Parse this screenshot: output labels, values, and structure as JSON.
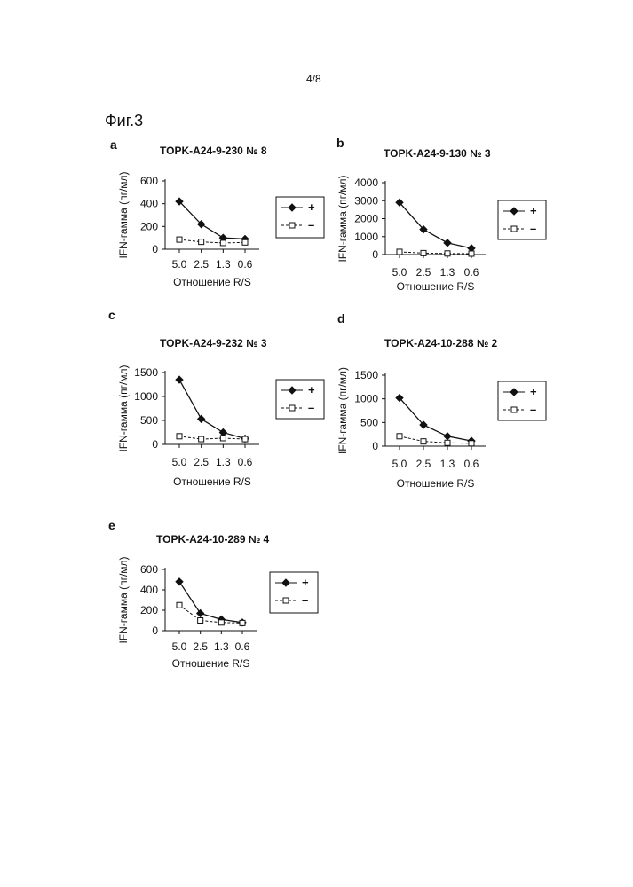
{
  "page": {
    "number": "4/8",
    "figure_label": "Фиг.3"
  },
  "chart_data": [
    {
      "panel": "a",
      "type": "line",
      "title": "TOPK-A24-9-230 № 8",
      "xlabel": "Отношение R/S",
      "ylabel": "IFN-гамма (пг/мл)",
      "categories": [
        "5.0",
        "2.5",
        "1.3",
        "0.6"
      ],
      "ylim": [
        0,
        600
      ],
      "yticks": [
        0,
        200,
        400,
        600
      ],
      "series": [
        {
          "name": "+",
          "marker": "diamond-filled",
          "line": "solid",
          "values": [
            420,
            220,
            100,
            90
          ]
        },
        {
          "name": "–",
          "marker": "square-open",
          "line": "dashed",
          "values": [
            85,
            65,
            55,
            60
          ]
        }
      ]
    },
    {
      "panel": "b",
      "type": "line",
      "title": "TOPK-A24-9-130 № 3",
      "xlabel": "Отношение R/S",
      "ylabel": "IFN-гамма (пг/мл)",
      "categories": [
        "5.0",
        "2.5",
        "1.3",
        "0.6"
      ],
      "ylim": [
        0,
        4000
      ],
      "yticks": [
        0,
        1000,
        2000,
        3000,
        4000
      ],
      "series": [
        {
          "name": "+",
          "marker": "diamond-filled",
          "line": "solid",
          "values": [
            2900,
            1400,
            650,
            350
          ]
        },
        {
          "name": "–",
          "marker": "square-open",
          "line": "dashed",
          "values": [
            150,
            80,
            60,
            50
          ]
        }
      ]
    },
    {
      "panel": "c",
      "type": "line",
      "title": "TOPK-A24-9-232 № 3",
      "xlabel": "Отношение R/S",
      "ylabel": "IFN-гамма (пг/мл)",
      "categories": [
        "5.0",
        "2.5",
        "1.3",
        "0.6"
      ],
      "ylim": [
        0,
        1500
      ],
      "yticks": [
        0,
        500,
        1000,
        1500
      ],
      "series": [
        {
          "name": "+",
          "marker": "diamond-filled",
          "line": "solid",
          "values": [
            1350,
            530,
            250,
            120
          ]
        },
        {
          "name": "–",
          "marker": "square-open",
          "line": "dashed",
          "values": [
            170,
            110,
            130,
            110
          ]
        }
      ]
    },
    {
      "panel": "d",
      "type": "line",
      "title": "TOPK-A24-10-288 № 2",
      "xlabel": "Отношение R/S",
      "ylabel": "IFN-гамма (пг/мл)",
      "categories": [
        "5.0",
        "2.5",
        "1.3",
        "0.6"
      ],
      "ylim": [
        0,
        1500
      ],
      "yticks": [
        0,
        500,
        1000,
        1500
      ],
      "series": [
        {
          "name": "+",
          "marker": "diamond-filled",
          "line": "solid",
          "values": [
            1020,
            450,
            210,
            110
          ]
        },
        {
          "name": "–",
          "marker": "square-open",
          "line": "dashed",
          "values": [
            210,
            100,
            70,
            60
          ]
        }
      ]
    },
    {
      "panel": "e",
      "type": "line",
      "title": "TOPK-A24-10-289 № 4",
      "xlabel": "Отношение R/S",
      "ylabel": "IFN-гамма (пг/мл)",
      "categories": [
        "5.0",
        "2.5",
        "1.3",
        "0.6"
      ],
      "ylim": [
        0,
        600
      ],
      "yticks": [
        0,
        200,
        400,
        600
      ],
      "series": [
        {
          "name": "+",
          "marker": "diamond-filled",
          "line": "solid",
          "values": [
            480,
            170,
            110,
            80
          ]
        },
        {
          "name": "–",
          "marker": "square-open",
          "line": "dashed",
          "values": [
            250,
            100,
            80,
            75
          ]
        }
      ]
    }
  ]
}
